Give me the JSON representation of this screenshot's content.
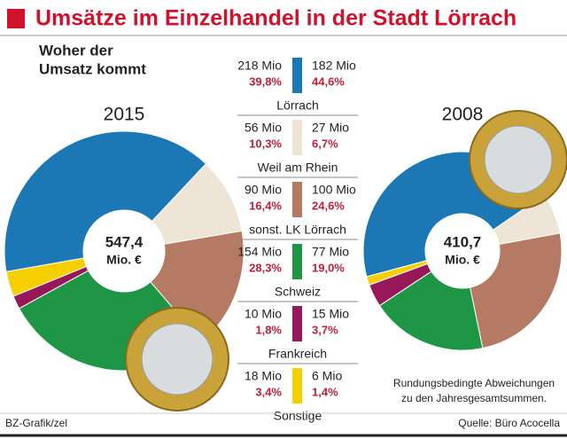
{
  "header": {
    "title": "Umsätze im Einzelhandel in der Stadt Lörrach",
    "subtitle": [
      "Woher der",
      "Umsatz kommt"
    ]
  },
  "legend": {
    "categories": [
      "Lörrach",
      "Weil am Rhein",
      "sonst. LK Lörrach",
      "Schweiz",
      "Frankreich",
      "Sonstige"
    ],
    "colors": [
      "#1b78b4",
      "#efe5d6",
      "#b47a64",
      "#1f9646",
      "#96185a",
      "#f5cf00"
    ]
  },
  "chart_data": [
    {
      "type": "pie",
      "title": "2015",
      "center": [
        "547,4",
        "Mio. €"
      ],
      "values": [
        39.8,
        10.3,
        16.4,
        28.3,
        1.8,
        3.4
      ],
      "value_labels": [
        "39,8%",
        "10,3%",
        "16,4%",
        "28,3%",
        "1,8%",
        "3,4%"
      ],
      "amount_labels": [
        "218 Mio",
        "56 Mio",
        "90 Mio",
        "154 Mio",
        "10 Mio",
        "18 Mio"
      ]
    },
    {
      "type": "pie",
      "title": "2008",
      "center": [
        "410,7",
        "Mio. €"
      ],
      "values": [
        44.6,
        6.7,
        24.6,
        19.0,
        3.7,
        1.4
      ],
      "value_labels": [
        "44,6%",
        "6,7%",
        "24,6%",
        "19,0%",
        "3,7%",
        "1,4%"
      ],
      "amount_labels": [
        "182 Mio",
        "27 Mio",
        "100 Mio",
        "77 Mio",
        "15 Mio",
        "6 Mio"
      ]
    }
  ],
  "footer": {
    "note": [
      "Rundungsbedingte Abweichungen",
      "zu den Jahresgesamtsummen."
    ],
    "credit": "BZ-Grafik/zel",
    "source": "Quelle: Büro Acocella"
  }
}
